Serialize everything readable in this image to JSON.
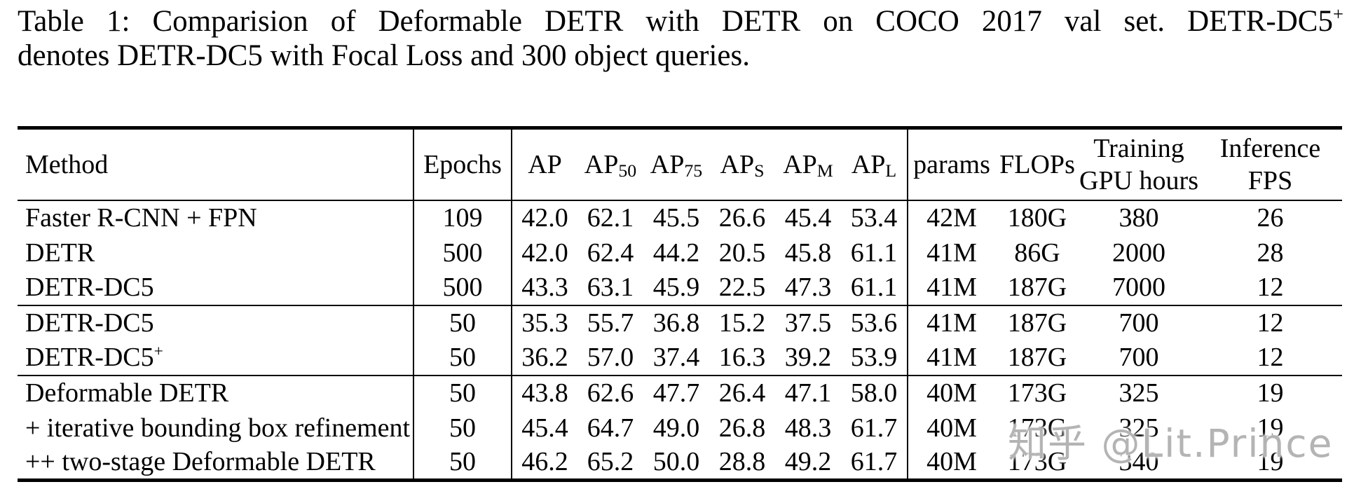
{
  "caption": {
    "line1": "Table 1: Comparision of Deformable DETR with DETR on COCO 2017 val set. DETR-DC5",
    "line1_sup": "+",
    "line2": "denotes DETR-DC5 with Focal Loss and 300 object queries."
  },
  "table": {
    "columns": [
      {
        "key": "method",
        "label": "Method"
      },
      {
        "key": "epochs",
        "label": "Epochs"
      },
      {
        "key": "ap",
        "label": "AP"
      },
      {
        "key": "ap50",
        "label": "AP",
        "sub": "50"
      },
      {
        "key": "ap75",
        "label": "AP",
        "sub": "75"
      },
      {
        "key": "ap_s",
        "label": "AP",
        "sub": "S"
      },
      {
        "key": "ap_m",
        "label": "AP",
        "sub": "M"
      },
      {
        "key": "ap_l",
        "label": "AP",
        "sub": "L"
      },
      {
        "key": "params",
        "label": "params"
      },
      {
        "key": "flops",
        "label": "FLOPs"
      },
      {
        "key": "training_gpu_hours",
        "label": "Training",
        "label2": "GPU hours"
      },
      {
        "key": "inference_fps",
        "label": "Inference",
        "label2": "FPS"
      }
    ],
    "groups": [
      {
        "rows": [
          [
            "Faster R-CNN + FPN",
            "109",
            "42.0",
            "62.1",
            "45.5",
            "26.6",
            "45.4",
            "53.4",
            "42M",
            "180G",
            "380",
            "26"
          ],
          [
            "DETR",
            "500",
            "42.0",
            "62.4",
            "44.2",
            "20.5",
            "45.8",
            "61.1",
            "41M",
            "86G",
            "2000",
            "28"
          ],
          [
            "DETR-DC5",
            "500",
            "43.3",
            "63.1",
            "45.9",
            "22.5",
            "47.3",
            "61.1",
            "41M",
            "187G",
            "7000",
            "12"
          ]
        ]
      },
      {
        "rows": [
          [
            "DETR-DC5",
            "50",
            "35.3",
            "55.7",
            "36.8",
            "15.2",
            "37.5",
            "53.6",
            "41M",
            "187G",
            "700",
            "12"
          ],
          [
            {
              "text": "DETR-DC5",
              "sup": "+"
            },
            "50",
            "36.2",
            "57.0",
            "37.4",
            "16.3",
            "39.2",
            "53.9",
            "41M",
            "187G",
            "700",
            "12"
          ]
        ]
      },
      {
        "rows": [
          [
            "Deformable DETR",
            "50",
            "43.8",
            "62.6",
            "47.7",
            "26.4",
            "47.1",
            "58.0",
            "40M",
            "173G",
            "325",
            "19"
          ],
          [
            "+ iterative bounding box refinement",
            "50",
            "45.4",
            "64.7",
            "49.0",
            "26.8",
            "48.3",
            "61.7",
            "40M",
            "173G",
            "325",
            "19"
          ],
          [
            "++ two-stage Deformable DETR",
            "50",
            "46.2",
            "65.2",
            "50.0",
            "28.8",
            "49.2",
            "61.7",
            "40M",
            "173G",
            "340",
            "19"
          ]
        ]
      }
    ]
  },
  "watermark": {
    "text": "知乎 @Lit.Prince",
    "color": "#b4b4b4"
  }
}
